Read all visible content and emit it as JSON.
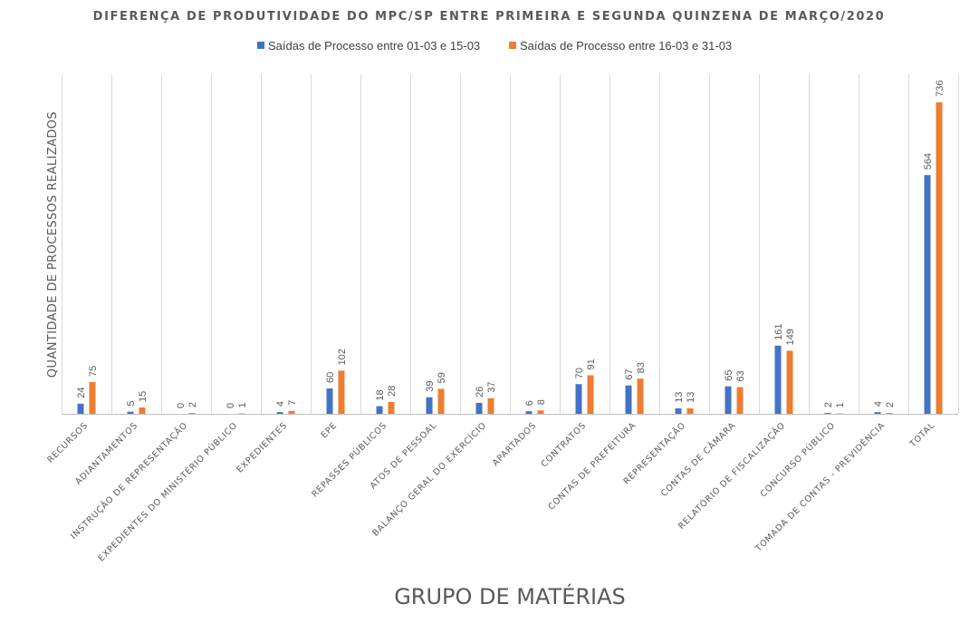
{
  "chart_data": {
    "type": "bar",
    "title": "DIFERENÇA DE PRODUTIVIDADE DO MPC/SP ENTRE PRIMEIRA E SEGUNDA QUINZENA DE MARÇO/2020",
    "xlabel": "GRUPO DE MATÉRIAS",
    "ylabel": "QUANTIDADE DE PROCESSOS REALIZADOS",
    "legend_position": "top",
    "grid": true,
    "ylim": [
      0,
      800
    ],
    "categories": [
      "RECURSOS",
      "ADIANTAMENTOS",
      "INSTRUÇÃO DE REPRESENTAÇÃO",
      "EXPEDIENTES DO MINISTÉRIO PÚBLICO",
      "EXPEDIENTES",
      "EPE",
      "REPASSES PÚBLICOS",
      "ATOS DE PESSOAL",
      "BALANÇO GERAL DO EXERCÍCIO",
      "APARTADOS",
      "CONTRATOS",
      "CONTAS DE PREFEITURA",
      "REPRESENTAÇÃO",
      "CONTAS DE CÂMARA",
      "RELATÓRIO DE FISCALIZAÇÃO",
      "CONCURSO PÚBLICO",
      "TOMADA DE CONTAS - PREVIDÊNCIA",
      "TOTAL"
    ],
    "series": [
      {
        "name": "Saídas de Processo entre 01-03 e 15-03",
        "color": "#4472c4",
        "values": [
          24,
          5,
          0,
          0,
          4,
          60,
          18,
          39,
          26,
          6,
          70,
          67,
          13,
          65,
          161,
          2,
          4,
          564
        ]
      },
      {
        "name": "Saídas de Processo entre 16-03 e 31-03",
        "color": "#ed7d31",
        "values": [
          75,
          15,
          2,
          1,
          7,
          102,
          28,
          59,
          37,
          8,
          91,
          83,
          13,
          63,
          149,
          1,
          2,
          736
        ]
      }
    ]
  }
}
